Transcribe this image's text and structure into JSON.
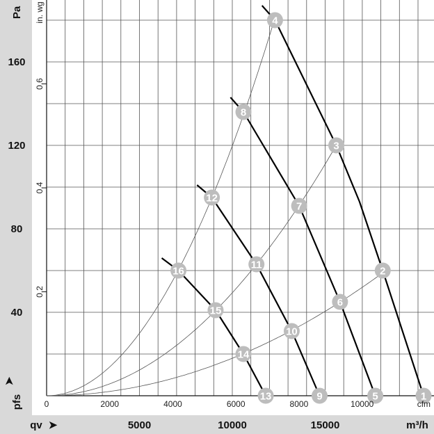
{
  "chart_data": {
    "type": "line",
    "title": "",
    "x_axis_primary": {
      "label": "qv",
      "unit": "m³/h",
      "ticks": [
        5000,
        10000,
        15000
      ],
      "range": [
        0,
        21000
      ]
    },
    "x_axis_secondary": {
      "unit": "cfm",
      "ticks": [
        0,
        2000,
        4000,
        6000,
        8000,
        10000
      ]
    },
    "y_axis_primary": {
      "label": "pfs",
      "unit": "Pa",
      "ticks": [
        40,
        80,
        120,
        160
      ],
      "range": [
        0,
        190
      ]
    },
    "y_axis_secondary": {
      "unit": "in. wg",
      "ticks": [
        0.2,
        0.4,
        0.6
      ]
    },
    "grid": true,
    "fan_curves": [
      {
        "points": [
          [
            11600,
            187
          ],
          [
            12300,
            180
          ],
          [
            15600,
            120
          ],
          [
            16850,
            93
          ],
          [
            18100,
            60
          ],
          [
            20300,
            0
          ]
        ],
        "markers": [
          4,
          3,
          2,
          1
        ]
      },
      {
        "points": [
          [
            9900,
            143
          ],
          [
            10600,
            136
          ],
          [
            13600,
            91
          ],
          [
            15800,
            45
          ],
          [
            17700,
            0
          ]
        ],
        "markers": [
          8,
          7,
          6,
          5
        ]
      },
      {
        "points": [
          [
            8100,
            101
          ],
          [
            8900,
            95
          ],
          [
            11300,
            63
          ],
          [
            13200,
            31
          ],
          [
            14700,
            0
          ]
        ],
        "markers": [
          12,
          11,
          10,
          9
        ]
      },
      {
        "points": [
          [
            6200,
            66
          ],
          [
            7100,
            60
          ],
          [
            9100,
            41
          ],
          [
            10600,
            20
          ],
          [
            11800,
            0
          ]
        ],
        "markers": [
          16,
          15,
          14,
          13
        ]
      }
    ],
    "system_curves": [
      {
        "through": [
          16,
          12,
          8,
          4
        ]
      },
      {
        "through": [
          15,
          11,
          7,
          3
        ]
      },
      {
        "through": [
          14,
          10,
          6,
          2
        ]
      }
    ],
    "operating_points": [
      {
        "id": "1",
        "q": 20300,
        "p": 0
      },
      {
        "id": "2",
        "q": 18100,
        "p": 60
      },
      {
        "id": "3",
        "q": 15600,
        "p": 120
      },
      {
        "id": "4",
        "q": 12300,
        "p": 180
      },
      {
        "id": "5",
        "q": 17700,
        "p": 0
      },
      {
        "id": "6",
        "q": 15800,
        "p": 45
      },
      {
        "id": "7",
        "q": 13600,
        "p": 91
      },
      {
        "id": "8",
        "q": 10600,
        "p": 136
      },
      {
        "id": "9",
        "q": 14700,
        "p": 0
      },
      {
        "id": "10",
        "q": 13200,
        "p": 31
      },
      {
        "id": "11",
        "q": 11300,
        "p": 63
      },
      {
        "id": "12",
        "q": 8900,
        "p": 95
      },
      {
        "id": "13",
        "q": 11800,
        "p": 0
      },
      {
        "id": "14",
        "q": 10600,
        "p": 20
      },
      {
        "id": "15",
        "q": 9100,
        "p": 41
      },
      {
        "id": "16",
        "q": 7100,
        "p": 60
      }
    ],
    "colors": {
      "panel": "#d9d9d9",
      "grid": "#555555",
      "fan_curve": "#000000",
      "system_curve": "#555555",
      "marker": "#bdbdbd"
    }
  }
}
